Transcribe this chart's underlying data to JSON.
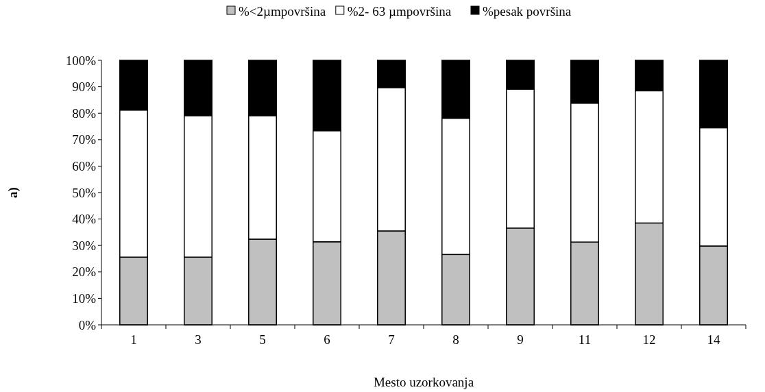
{
  "chart_data": {
    "type": "bar",
    "stacked": true,
    "xlabel": "Mesto uzorkovanja",
    "ylabel": "a)",
    "legend": "top",
    "categories": [
      "1",
      "3",
      "5",
      "6",
      "7",
      "8",
      "9",
      "11",
      "12",
      "14"
    ],
    "series": [
      {
        "name": "%<2µmpovršina",
        "color": "#c0c0c0",
        "values": [
          25.6,
          25.6,
          32.4,
          31.4,
          35.5,
          26.6,
          36.6,
          31.3,
          38.5,
          29.8
        ]
      },
      {
        "name": "%2- 63 µmpovršina",
        "color": "#ffffff",
        "values": [
          55.6,
          53.5,
          46.7,
          42.0,
          54.2,
          51.5,
          52.5,
          52.5,
          50.0,
          44.7
        ]
      },
      {
        "name": "%pesak površina",
        "color": "#000000",
        "values": [
          18.8,
          20.9,
          20.9,
          26.6,
          10.3,
          21.9,
          10.9,
          16.2,
          11.5,
          25.5
        ]
      }
    ],
    "ylim": [
      0,
      100
    ],
    "yticks": [
      {
        "value": 0,
        "label": "0%"
      },
      {
        "value": 10,
        "label": "10%"
      },
      {
        "value": 20,
        "label": "20%"
      },
      {
        "value": 30,
        "label": "30%"
      },
      {
        "value": 40,
        "label": "40%"
      },
      {
        "value": 50,
        "label": "50%"
      },
      {
        "value": 60,
        "label": "60%"
      },
      {
        "value": 70,
        "label": "70%"
      },
      {
        "value": 80,
        "label": "80%"
      },
      {
        "value": 90,
        "label": "90%"
      },
      {
        "value": 100,
        "label": "100%"
      }
    ]
  }
}
